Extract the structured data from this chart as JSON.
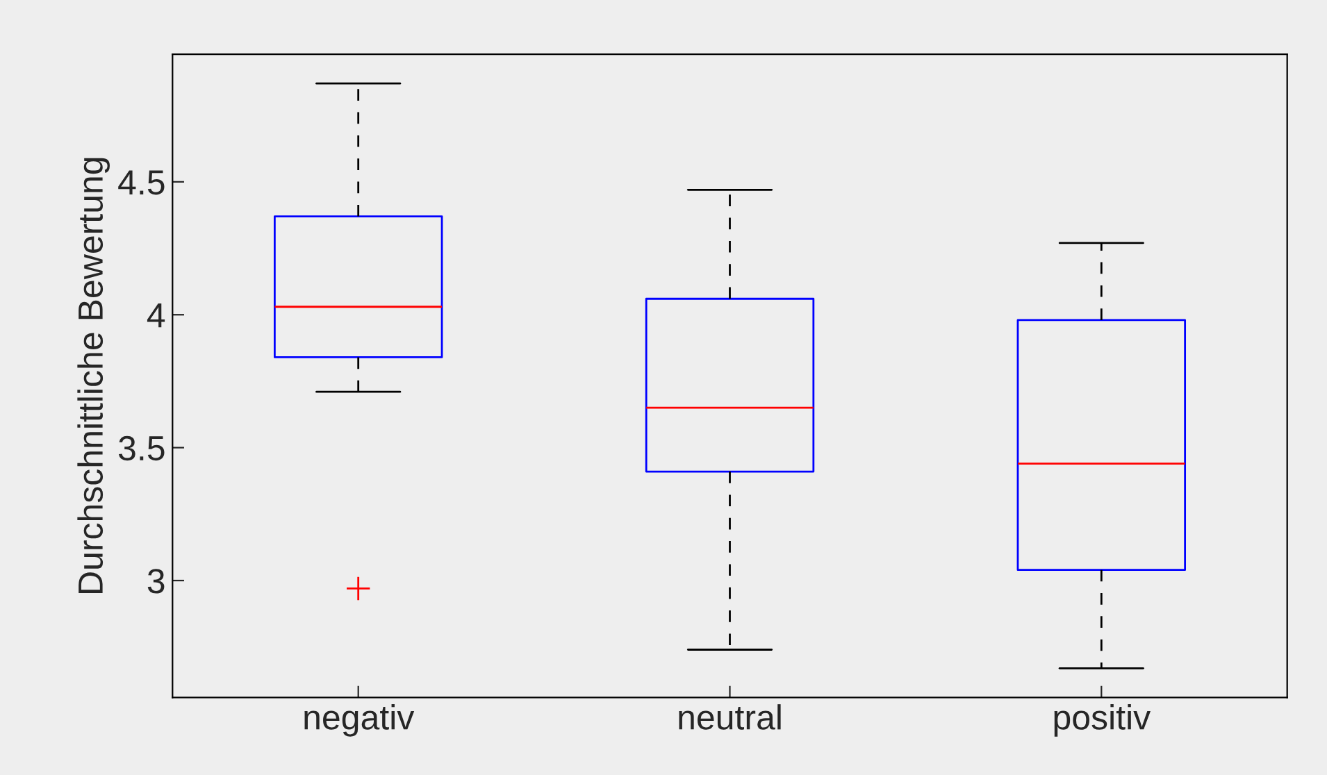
{
  "chart_data": {
    "type": "box",
    "ylabel": "Durchschnittliche Bewertung",
    "categories": [
      "negativ",
      "neutral",
      "positiv"
    ],
    "boxes": [
      {
        "low": 3.71,
        "q1": 3.84,
        "median": 4.03,
        "q3": 4.37,
        "high": 4.87,
        "outliers": [
          2.97
        ]
      },
      {
        "low": 2.74,
        "q1": 3.41,
        "median": 3.65,
        "q3": 4.06,
        "high": 4.47
      },
      {
        "low": 2.67,
        "q1": 3.04,
        "median": 3.44,
        "q3": 3.98,
        "high": 4.27
      }
    ],
    "color": "#0000ff",
    "ylim": [
      2.56,
      4.98
    ],
    "yticks": [
      3,
      3.5,
      4,
      4.5
    ],
    "grid": false
  }
}
